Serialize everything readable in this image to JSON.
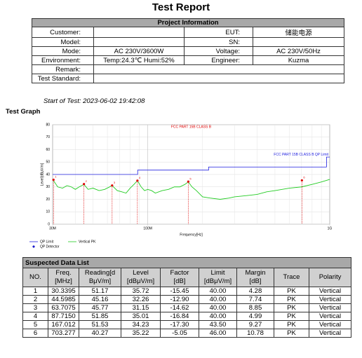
{
  "header": {
    "title": "Test Report"
  },
  "project": {
    "title": "Project Information",
    "rows": [
      [
        "Customer:",
        null,
        "EUT:",
        "储能电源"
      ],
      [
        "Model:",
        null,
        "SN:",
        null
      ],
      [
        "Mode:",
        "AC 230V/3600W",
        "Voltage:",
        "AC 230V/50Hz"
      ],
      [
        "Environment:",
        "Temp:24.3℃  Humi:52%",
        "Engineer:",
        "Kuzma"
      ]
    ],
    "remark": "Remark:",
    "standard": "Test Standard:"
  },
  "start": "Start of Test: 2023-06-02 19:42:08",
  "graph_heading": "Test Graph",
  "chart_data": {
    "type": "line",
    "title": "FCC PART 15B CLASS B",
    "limit_label": "FCC PART 15B CLASS B QP Limit",
    "x_label": "Frequency[Hz]",
    "y_label": "Level[dBμV/m]",
    "x_log": true,
    "grid": true,
    "xlim": [
      30,
      1000
    ],
    "ylim": [
      0,
      80
    ],
    "xticks": [
      {
        "value": 30,
        "label": "30M"
      },
      {
        "value": 100,
        "label": "100M"
      },
      {
        "value": 1000,
        "label": "1G"
      }
    ],
    "yticks": [
      0,
      10,
      20,
      30,
      40,
      50,
      60,
      70,
      80
    ],
    "series": [
      {
        "name": "QP Limit",
        "color": "#2020e0",
        "x": [
          30,
          88,
          88,
          216,
          216,
          960,
          960,
          1000
        ],
        "values": [
          40,
          40,
          43.5,
          43.5,
          46,
          46,
          54,
          54
        ]
      },
      {
        "name": "Vertical PK",
        "color": "#22cc22",
        "x": [
          30,
          31,
          32,
          34,
          36,
          38,
          40,
          42,
          44.6,
          47,
          50,
          54,
          58,
          63.7,
          68,
          72,
          76,
          80,
          84,
          87.7,
          92,
          96,
          100,
          105,
          110,
          120,
          130,
          140,
          150,
          160,
          167,
          175,
          185,
          200,
          220,
          250,
          280,
          300,
          350,
          400,
          450,
          500,
          600,
          700,
          800,
          900,
          1000
        ],
        "values": [
          36,
          33,
          30,
          29,
          31,
          30,
          28,
          30,
          32,
          28,
          29,
          27,
          28,
          31,
          27,
          26,
          25,
          29,
          32,
          35,
          30,
          27,
          28,
          27,
          25,
          27,
          28,
          30,
          30,
          32,
          34,
          30,
          27,
          22,
          21,
          20,
          21,
          22,
          23,
          24,
          26,
          27,
          29,
          30,
          32,
          34,
          36
        ]
      }
    ],
    "markers": {
      "name": "QP Detector",
      "color": "#e00000",
      "legend_color": "#1a1acc"
    }
  },
  "table": {
    "title": "Suspected Data List",
    "columns": [
      [
        "NO."
      ],
      [
        "Freq.",
        "[MHz]"
      ],
      [
        "Reading[d",
        "BμV/m]"
      ],
      [
        "Level",
        "[dBμV/m]"
      ],
      [
        "Factor",
        "[dB]"
      ],
      [
        "Limit",
        "[dBμV/m]"
      ],
      [
        "Margin",
        "[dB]"
      ],
      [
        "Trace"
      ],
      [
        "Polarity"
      ]
    ],
    "rows": [
      [
        "1",
        "30.3395",
        "51.17",
        "35.72",
        "-15.45",
        "40.00",
        "4.28",
        "PK",
        "Vertical"
      ],
      [
        "2",
        "44.5985",
        "45.16",
        "32.26",
        "-12.90",
        "40.00",
        "7.74",
        "PK",
        "Vertical"
      ],
      [
        "3",
        "63.7075",
        "45.77",
        "31.15",
        "-14.62",
        "40.00",
        "8.85",
        "PK",
        "Vertical"
      ],
      [
        "4",
        "87.7150",
        "51.85",
        "35.01",
        "-16.84",
        "40.00",
        "4.99",
        "PK",
        "Vertical"
      ],
      [
        "5",
        "167.012",
        "51.53",
        "34.23",
        "-17.30",
        "43.50",
        "9.27",
        "PK",
        "Vertical"
      ],
      [
        "6",
        "703.277",
        "40.27",
        "35.22",
        "-5.05",
        "46.00",
        "10.78",
        "PK",
        "Vertical"
      ]
    ]
  }
}
